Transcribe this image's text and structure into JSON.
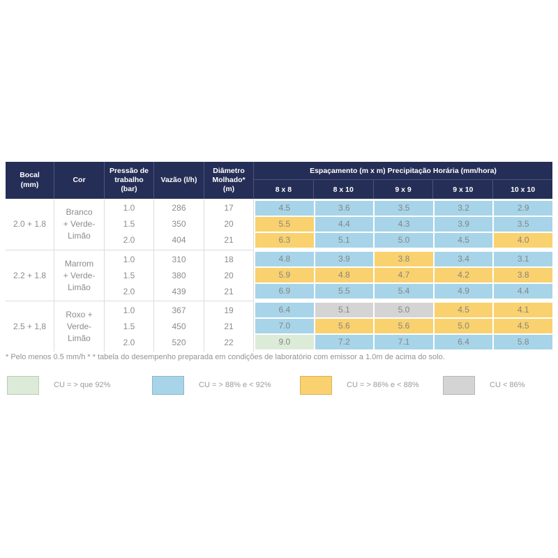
{
  "colors": {
    "header_navy": "#252e56",
    "cu_green": "#dcebd7",
    "cu_blue": "#a7d4e8",
    "cu_yellow": "#f9d16e",
    "cu_gray": "#d4d4d4"
  },
  "table": {
    "header": {
      "left_columns": [
        "Bocal\n(mm)",
        "Cor",
        "Pressão de\ntrabalho\n(bar)",
        "Vazão (l/h)",
        "Diâmetro\nMolhado*\n(m)"
      ],
      "spacing_title": "Espaçamento  (m x m) Precipitação Horária (mm/hora)",
      "spacing_columns": [
        "8 x 8",
        "8 x 10",
        "9 x 9",
        "9 x 10",
        "10 x 10"
      ]
    },
    "groups": [
      {
        "bocal": "2.0 + 1.8",
        "cor_lines": [
          "Branco",
          "+ Verde-",
          "Limão"
        ],
        "pressao": [
          "1.0",
          "1.5",
          "2.0"
        ],
        "vazao": [
          "286",
          "350",
          "404"
        ],
        "diametro": [
          "17",
          "20",
          "21"
        ],
        "rows": [
          {
            "cells": [
              {
                "v": "4.5",
                "cu": "blue"
              },
              {
                "v": "3.6",
                "cu": "blue"
              },
              {
                "v": "3.5",
                "cu": "blue"
              },
              {
                "v": "3.2",
                "cu": "blue"
              },
              {
                "v": "2.9",
                "cu": "blue"
              }
            ]
          },
          {
            "cells": [
              {
                "v": "5.5",
                "cu": "yellow"
              },
              {
                "v": "4.4",
                "cu": "blue"
              },
              {
                "v": "4.3",
                "cu": "blue"
              },
              {
                "v": "3.9",
                "cu": "blue"
              },
              {
                "v": "3.5",
                "cu": "blue"
              }
            ]
          },
          {
            "cells": [
              {
                "v": "6.3",
                "cu": "yellow"
              },
              {
                "v": "5.1",
                "cu": "blue"
              },
              {
                "v": "5.0",
                "cu": "blue"
              },
              {
                "v": "4.5",
                "cu": "blue"
              },
              {
                "v": "4.0",
                "cu": "yellow"
              }
            ]
          }
        ]
      },
      {
        "bocal": "2.2 + 1.8",
        "cor_lines": [
          "Marrom",
          "+ Verde-",
          "Limão"
        ],
        "pressao": [
          "1.0",
          "1.5",
          "2.0"
        ],
        "vazao": [
          "310",
          "380",
          "439"
        ],
        "diametro": [
          "18",
          "20",
          "21"
        ],
        "rows": [
          {
            "cells": [
              {
                "v": "4.8",
                "cu": "blue"
              },
              {
                "v": "3.9",
                "cu": "blue"
              },
              {
                "v": "3.8",
                "cu": "yellow"
              },
              {
                "v": "3.4",
                "cu": "blue"
              },
              {
                "v": "3.1",
                "cu": "blue"
              }
            ]
          },
          {
            "cells": [
              {
                "v": "5.9",
                "cu": "yellow"
              },
              {
                "v": "4.8",
                "cu": "yellow"
              },
              {
                "v": "4.7",
                "cu": "yellow"
              },
              {
                "v": "4.2",
                "cu": "yellow"
              },
              {
                "v": "3.8",
                "cu": "yellow"
              }
            ]
          },
          {
            "cells": [
              {
                "v": "6.9",
                "cu": "blue"
              },
              {
                "v": "5.5",
                "cu": "blue"
              },
              {
                "v": "5.4",
                "cu": "blue"
              },
              {
                "v": "4.9",
                "cu": "blue"
              },
              {
                "v": "4.4",
                "cu": "blue"
              }
            ]
          }
        ]
      },
      {
        "bocal": "2.5 + 1,8",
        "cor_lines": [
          "Roxo +",
          "Verde-",
          "Limão"
        ],
        "pressao": [
          "1.0",
          "1.5",
          "2.0"
        ],
        "vazao": [
          "367",
          "450",
          "520"
        ],
        "diametro": [
          "19",
          "21",
          "22"
        ],
        "rows": [
          {
            "cells": [
              {
                "v": "6.4",
                "cu": "blue"
              },
              {
                "v": "5.1",
                "cu": "gray"
              },
              {
                "v": "5.0",
                "cu": "gray"
              },
              {
                "v": "4.5",
                "cu": "yellow"
              },
              {
                "v": "4.1",
                "cu": "yellow"
              }
            ]
          },
          {
            "cells": [
              {
                "v": "7.0",
                "cu": "blue"
              },
              {
                "v": "5.6",
                "cu": "yellow"
              },
              {
                "v": "5.6",
                "cu": "yellow"
              },
              {
                "v": "5.0",
                "cu": "yellow"
              },
              {
                "v": "4.5",
                "cu": "yellow"
              }
            ]
          },
          {
            "cells": [
              {
                "v": "9.0",
                "cu": "green"
              },
              {
                "v": "7.2",
                "cu": "blue"
              },
              {
                "v": "7.1",
                "cu": "blue"
              },
              {
                "v": "6.4",
                "cu": "blue"
              },
              {
                "v": "5.8",
                "cu": "blue"
              }
            ]
          }
        ]
      }
    ]
  },
  "footnote": {
    "text": "* Pelo menos 0.5 mm/h * *  tabela do desempenho preparada em condições de laboratório com emissor a 1.0m de acima do solo."
  },
  "legend": {
    "items": [
      {
        "label": "CU = > que 92%",
        "cu": "green",
        "color": "#dcebd7"
      },
      {
        "label": "CU = > 88% e < 92%",
        "cu": "blue",
        "color": "#a7d4e8"
      },
      {
        "label": "CU = > 86% e < 88%",
        "cu": "yellow",
        "color": "#f9d16e"
      },
      {
        "label": "CU < 86%",
        "cu": "gray",
        "color": "#d4d4d4"
      }
    ]
  }
}
